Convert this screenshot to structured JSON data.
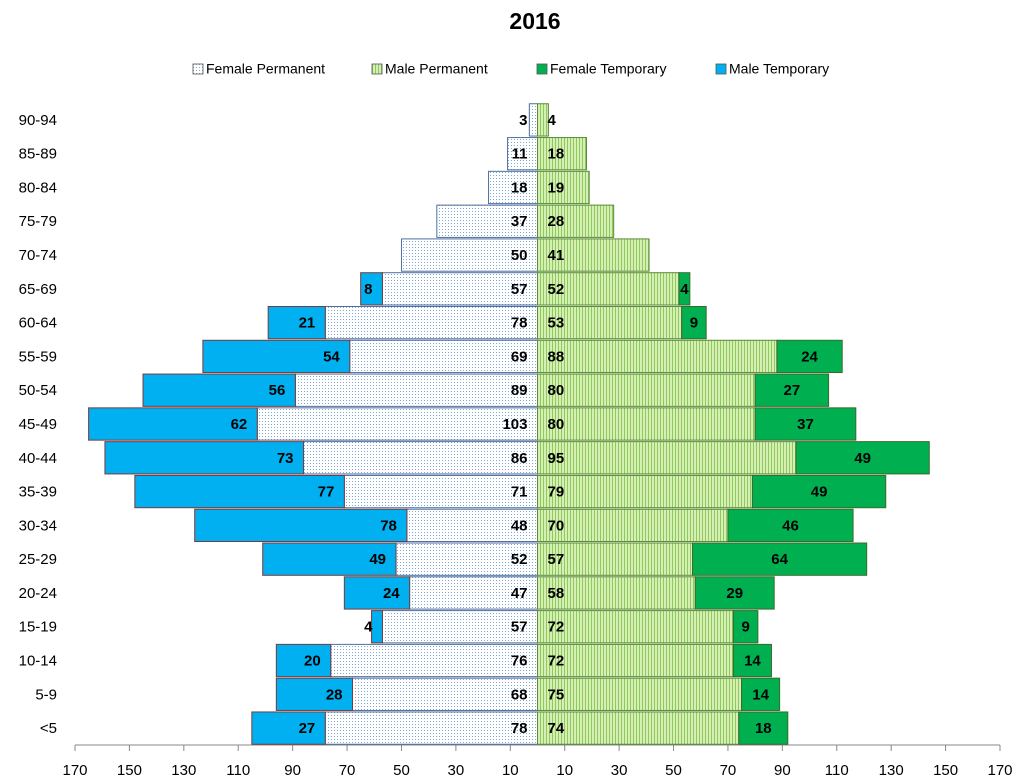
{
  "chart_data": {
    "type": "pyramid",
    "title": "2016",
    "categories": [
      "<5",
      "5-9",
      "10-14",
      "15-19",
      "20-24",
      "25-29",
      "30-34",
      "35-39",
      "40-44",
      "45-49",
      "50-54",
      "55-59",
      "60-64",
      "65-69",
      "70-74",
      "75-79",
      "80-84",
      "85-89",
      "90-94"
    ],
    "series": [
      {
        "name": "Female Permanent",
        "color": "#dce9f8",
        "pattern": "dots",
        "side": "left",
        "values": [
          78,
          68,
          76,
          57,
          47,
          52,
          48,
          71,
          86,
          103,
          89,
          69,
          78,
          57,
          50,
          37,
          18,
          11,
          3
        ]
      },
      {
        "name": "Male Permanent",
        "color": "#d6f0b4",
        "pattern": "stripes",
        "side": "right",
        "values": [
          74,
          75,
          72,
          72,
          58,
          57,
          70,
          79,
          95,
          80,
          80,
          88,
          53,
          52,
          41,
          28,
          19,
          18,
          4
        ]
      },
      {
        "name": "Female Temporary",
        "color": "#00b050",
        "side": "right",
        "values": [
          18,
          14,
          14,
          9,
          29,
          64,
          46,
          49,
          49,
          37,
          27,
          24,
          9,
          4,
          null,
          null,
          null,
          null,
          null
        ]
      },
      {
        "name": "Male Temporary",
        "color": "#00b0f0",
        "side": "left",
        "values": [
          27,
          28,
          20,
          4,
          24,
          49,
          78,
          77,
          73,
          62,
          56,
          54,
          21,
          8,
          null,
          null,
          null,
          null,
          null
        ]
      }
    ],
    "xlim": [
      -170,
      170
    ],
    "xticks": [
      {
        "value": -170,
        "label": "170"
      },
      {
        "value": -150,
        "label": "150"
      },
      {
        "value": -130,
        "label": "130"
      },
      {
        "value": -110,
        "label": "110"
      },
      {
        "value": -90,
        "label": "90"
      },
      {
        "value": -70,
        "label": "70"
      },
      {
        "value": -50,
        "label": "50"
      },
      {
        "value": -30,
        "label": "30"
      },
      {
        "value": -10,
        "label": "10"
      },
      10,
      30,
      50,
      70,
      90,
      110,
      130,
      150,
      170
    ]
  }
}
